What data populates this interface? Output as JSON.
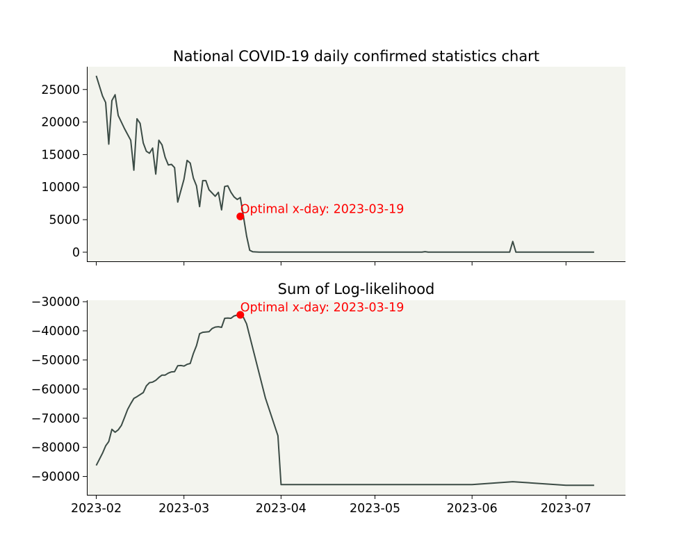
{
  "chart_data": [
    {
      "type": "line",
      "title": "National COVID-19 daily confirmed statistics chart",
      "xlabel": "",
      "ylabel": "",
      "x_range": [
        "2023-01-29",
        "2023-07-20"
      ],
      "ylim": [
        -1400,
        28500
      ],
      "yticks": [
        0,
        5000,
        10000,
        15000,
        20000,
        25000
      ],
      "xticks": [
        "2023-02",
        "2023-03",
        "2023-04",
        "2023-05",
        "2023-06",
        "2023-07"
      ],
      "xticklabels_visible": false,
      "grid": false,
      "background": "#f3f4ee",
      "line_color": "#3b4b45",
      "marker_color": "#ff0000",
      "annotation": {
        "text": "Optimal x-day: 2023-03-19",
        "x": "2023-03-19",
        "y": 5500
      },
      "points": [
        [
          "2023-02-01",
          27100
        ],
        [
          "2023-02-03",
          24000
        ],
        [
          "2023-02-04",
          23000
        ],
        [
          "2023-02-05",
          16600
        ],
        [
          "2023-02-06",
          23300
        ],
        [
          "2023-02-07",
          24200
        ],
        [
          "2023-02-08",
          21000
        ],
        [
          "2023-02-10",
          19000
        ],
        [
          "2023-02-12",
          17200
        ],
        [
          "2023-02-13",
          12600
        ],
        [
          "2023-02-14",
          20500
        ],
        [
          "2023-02-15",
          19800
        ],
        [
          "2023-02-16",
          16800
        ],
        [
          "2023-02-17",
          15500
        ],
        [
          "2023-02-18",
          15200
        ],
        [
          "2023-02-19",
          16000
        ],
        [
          "2023-02-20",
          12000
        ],
        [
          "2023-02-21",
          17200
        ],
        [
          "2023-02-22",
          16500
        ],
        [
          "2023-02-23",
          14600
        ],
        [
          "2023-02-24",
          13400
        ],
        [
          "2023-02-25",
          13500
        ],
        [
          "2023-02-26",
          13000
        ],
        [
          "2023-02-27",
          7700
        ],
        [
          "2023-03-01",
          11200
        ],
        [
          "2023-03-02",
          14100
        ],
        [
          "2023-03-03",
          13700
        ],
        [
          "2023-03-04",
          11400
        ],
        [
          "2023-03-05",
          10200
        ],
        [
          "2023-03-06",
          7000
        ],
        [
          "2023-03-07",
          11000
        ],
        [
          "2023-03-08",
          11000
        ],
        [
          "2023-03-09",
          9600
        ],
        [
          "2023-03-11",
          8600
        ],
        [
          "2023-03-12",
          9200
        ],
        [
          "2023-03-13",
          6500
        ],
        [
          "2023-03-14",
          10100
        ],
        [
          "2023-03-15",
          10200
        ],
        [
          "2023-03-16",
          9200
        ],
        [
          "2023-03-17",
          8500
        ],
        [
          "2023-03-18",
          8100
        ],
        [
          "2023-03-19",
          8400
        ],
        [
          "2023-03-20",
          5500
        ],
        [
          "2023-03-21",
          2500
        ],
        [
          "2023-03-22",
          300
        ],
        [
          "2023-03-23",
          60
        ],
        [
          "2023-03-25",
          10
        ],
        [
          "2023-04-15",
          10
        ],
        [
          "2023-05-16",
          10
        ],
        [
          "2023-05-17",
          80
        ],
        [
          "2023-05-18",
          10
        ],
        [
          "2023-06-13",
          10
        ],
        [
          "2023-06-14",
          1650
        ],
        [
          "2023-06-15",
          10
        ],
        [
          "2023-07-10",
          10
        ]
      ]
    },
    {
      "type": "line",
      "title": "Sum of Log-likelihood",
      "xlabel": "",
      "ylabel": "",
      "x_range": [
        "2023-01-29",
        "2023-07-20"
      ],
      "ylim": [
        -96300,
        -29500
      ],
      "yticks": [
        -90000,
        -80000,
        -70000,
        -60000,
        -50000,
        -40000,
        -30000
      ],
      "xticks": [
        "2023-02",
        "2023-03",
        "2023-04",
        "2023-05",
        "2023-06",
        "2023-07"
      ],
      "xticklabels_visible": true,
      "grid": false,
      "background": "#f3f4ee",
      "line_color": "#3b4b45",
      "marker_color": "#ff0000",
      "annotation": {
        "text": "Optimal x-day: 2023-03-19",
        "x": "2023-03-19",
        "y": -34500
      },
      "points": [
        [
          "2023-02-01",
          -86200
        ],
        [
          "2023-02-03",
          -82000
        ],
        [
          "2023-02-04",
          -79500
        ],
        [
          "2023-02-05",
          -78000
        ],
        [
          "2023-02-06",
          -73800
        ],
        [
          "2023-02-07",
          -74800
        ],
        [
          "2023-02-08",
          -74000
        ],
        [
          "2023-02-09",
          -72500
        ],
        [
          "2023-02-10",
          -69800
        ],
        [
          "2023-02-11",
          -67000
        ],
        [
          "2023-02-12",
          -65000
        ],
        [
          "2023-02-13",
          -63200
        ],
        [
          "2023-02-14",
          -62600
        ],
        [
          "2023-02-16",
          -61200
        ],
        [
          "2023-02-17",
          -58900
        ],
        [
          "2023-02-18",
          -57800
        ],
        [
          "2023-02-19",
          -57600
        ],
        [
          "2023-02-20",
          -57000
        ],
        [
          "2023-02-21",
          -56000
        ],
        [
          "2023-02-22",
          -55200
        ],
        [
          "2023-02-23",
          -55200
        ],
        [
          "2023-02-24",
          -54500
        ],
        [
          "2023-02-25",
          -54100
        ],
        [
          "2023-02-26",
          -54000
        ],
        [
          "2023-02-27",
          -52000
        ],
        [
          "2023-02-28",
          -51900
        ],
        [
          "2023-03-01",
          -52100
        ],
        [
          "2023-03-02",
          -51500
        ],
        [
          "2023-03-03",
          -51200
        ],
        [
          "2023-03-04",
          -47800
        ],
        [
          "2023-03-05",
          -45100
        ],
        [
          "2023-03-06",
          -41000
        ],
        [
          "2023-03-07",
          -40500
        ],
        [
          "2023-03-09",
          -40300
        ],
        [
          "2023-03-10",
          -39200
        ],
        [
          "2023-03-11",
          -38700
        ],
        [
          "2023-03-12",
          -38600
        ],
        [
          "2023-03-13",
          -38800
        ],
        [
          "2023-03-14",
          -35700
        ],
        [
          "2023-03-15",
          -35600
        ],
        [
          "2023-03-16",
          -35700
        ],
        [
          "2023-03-17",
          -34900
        ],
        [
          "2023-03-18",
          -34600
        ],
        [
          "2023-03-19",
          -34500
        ],
        [
          "2023-03-20",
          -35400
        ],
        [
          "2023-03-21",
          -37600
        ],
        [
          "2023-03-27",
          -63000
        ],
        [
          "2023-03-31",
          -76000
        ],
        [
          "2023-04-01",
          -92800
        ],
        [
          "2023-06-01",
          -92800
        ],
        [
          "2023-06-14",
          -91800
        ],
        [
          "2023-07-01",
          -93000
        ],
        [
          "2023-07-10",
          -93000
        ]
      ]
    }
  ]
}
